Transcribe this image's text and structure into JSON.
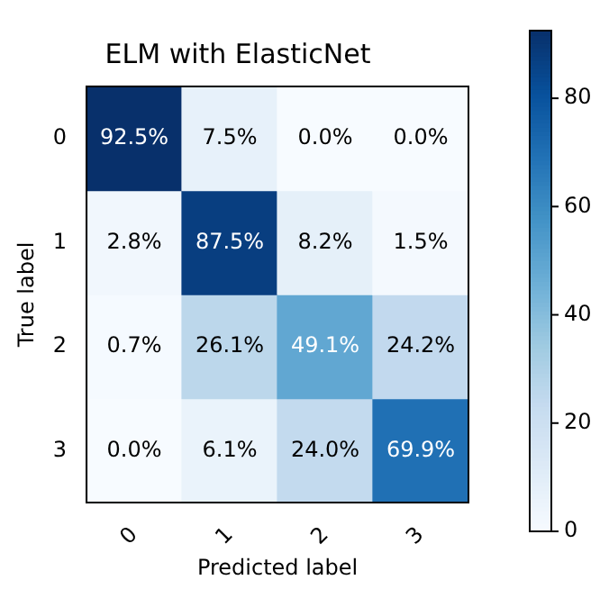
{
  "chart_data": {
    "type": "heatmap",
    "title": "ELM with ElasticNet",
    "xlabel": "Predicted label",
    "ylabel": "True label",
    "categories": [
      "0",
      "1",
      "2",
      "3"
    ],
    "y_categories": [
      "0",
      "1",
      "2",
      "3"
    ],
    "cells": [
      [
        92.5,
        7.5,
        0.0,
        0.0
      ],
      [
        2.8,
        87.5,
        8.2,
        1.5
      ],
      [
        0.7,
        26.1,
        49.1,
        24.2
      ],
      [
        0.0,
        6.1,
        24.0,
        69.9
      ]
    ],
    "cell_labels": [
      [
        "92.5%",
        "7.5%",
        "0.0%",
        "0.0%"
      ],
      [
        "2.8%",
        "87.5%",
        "8.2%",
        "1.5%"
      ],
      [
        "0.7%",
        "26.1%",
        "49.1%",
        "24.2%"
      ],
      [
        "0.0%",
        "6.1%",
        "24.0%",
        "69.9%"
      ]
    ],
    "clim": [
      0,
      92.5
    ],
    "cticks": [
      0,
      20,
      40,
      60,
      80
    ]
  }
}
